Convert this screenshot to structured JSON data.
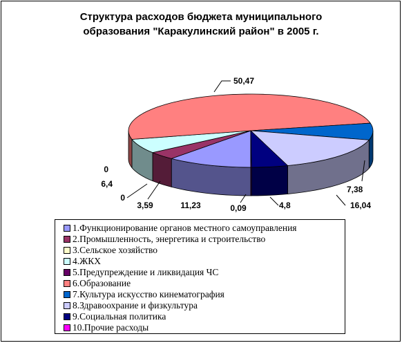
{
  "chart_data": {
    "type": "pie",
    "title": "Структура расходов бюджета муниципального образования \"Каракулинский район\" в 2005 г.",
    "title_lines": [
      "Структура расходов бюджета муниципального",
      "образования \"Каракулинский район\" в 2005 г."
    ],
    "three_d": true,
    "legend_position": "bottom",
    "slices": [
      {
        "label": "1.Функционирование органов местного самоуправления",
        "value": 11.23,
        "value_label": "11,23",
        "color": "#9999ff"
      },
      {
        "label": "2.Промышленность, энергетика и строительство",
        "value": 3.59,
        "value_label": "3,59",
        "color": "#993366"
      },
      {
        "label": "3.Сельское хозяйство",
        "value": 0,
        "value_label": "0",
        "color": "#ffffcc"
      },
      {
        "label": "4.ЖКХ",
        "value": 6.4,
        "value_label": "6,4",
        "color": "#ccffff"
      },
      {
        "label": "5.Предупреждение и ликвидация ЧС",
        "value": 0,
        "value_label": "0",
        "color": "#660066"
      },
      {
        "label": "6.Образование",
        "value": 50.47,
        "value_label": "50,47",
        "color": "#ff8080"
      },
      {
        "label": "7.Культура искусство  кинематография",
        "value": 7.38,
        "value_label": "7,38",
        "color": "#0066cc"
      },
      {
        "label": "8.Здравоохрание и физкультура",
        "value": 16.04,
        "value_label": "16,04",
        "color": "#ccccff"
      },
      {
        "label": "9.Социальная  политика",
        "value": 4.8,
        "value_label": "4,8",
        "color": "#000080"
      },
      {
        "label": "10.Прочие расходы",
        "value": 0.09,
        "value_label": "0,09",
        "color": "#ff00ff"
      }
    ]
  }
}
